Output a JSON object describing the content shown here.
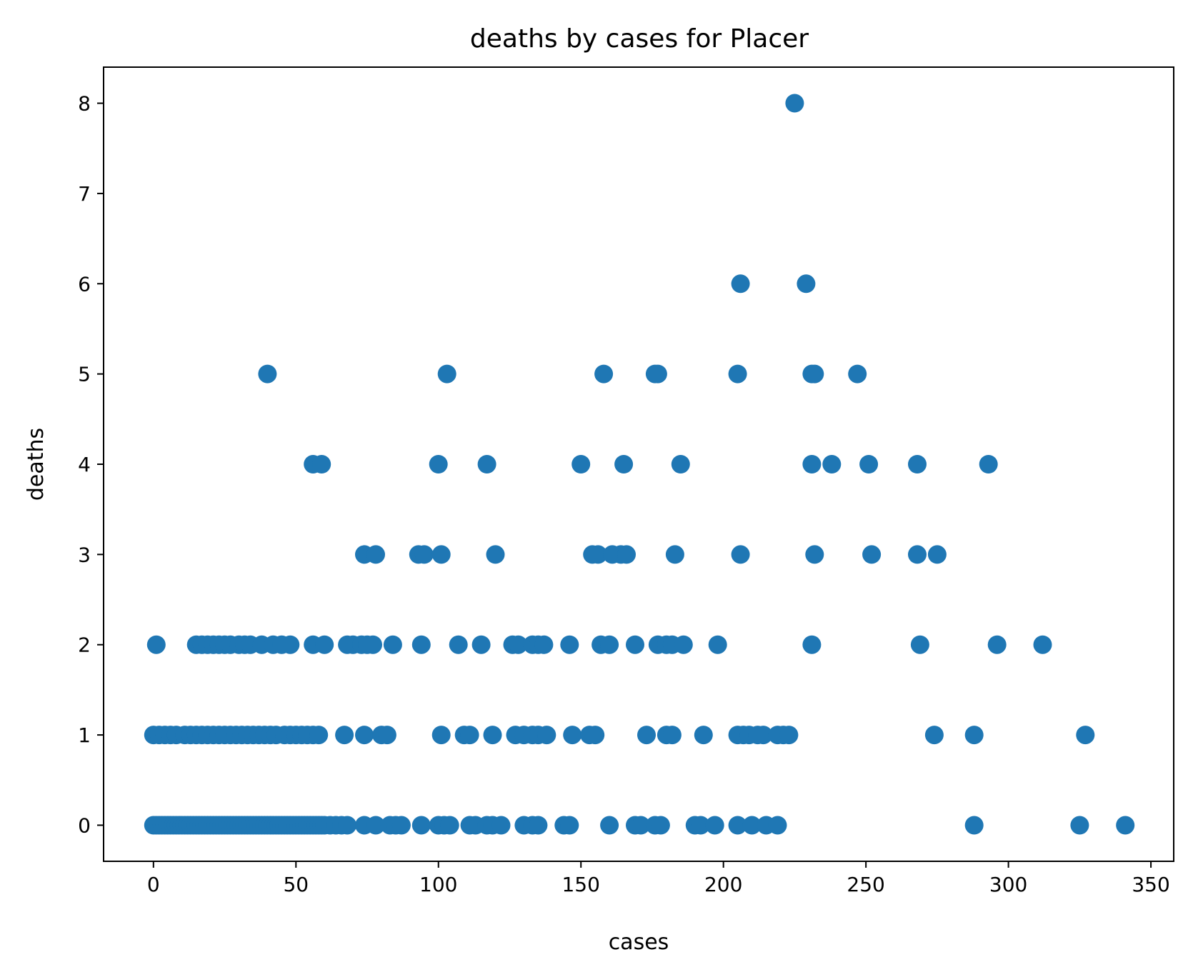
{
  "chart_data": {
    "type": "scatter",
    "title": "deaths by cases for Placer",
    "xlabel": "cases",
    "ylabel": "deaths",
    "xlim": [
      -17.5,
      358
    ],
    "ylim": [
      -0.4,
      8.4
    ],
    "xticks": [
      0,
      50,
      100,
      150,
      200,
      250,
      300,
      350
    ],
    "yticks": [
      0,
      1,
      2,
      3,
      4,
      5,
      6,
      7,
      8
    ],
    "grid": false,
    "legend": "none",
    "marker_color": "#1f77b4",
    "points": [
      [
        225,
        8
      ],
      [
        206,
        6
      ],
      [
        229,
        6
      ],
      [
        40,
        5
      ],
      [
        103,
        5
      ],
      [
        158,
        5
      ],
      [
        176,
        5
      ],
      [
        177,
        5
      ],
      [
        205,
        5
      ],
      [
        231,
        5
      ],
      [
        232,
        5
      ],
      [
        247,
        5
      ],
      [
        56,
        4
      ],
      [
        59,
        4
      ],
      [
        100,
        4
      ],
      [
        117,
        4
      ],
      [
        150,
        4
      ],
      [
        165,
        4
      ],
      [
        185,
        4
      ],
      [
        231,
        4
      ],
      [
        238,
        4
      ],
      [
        251,
        4
      ],
      [
        268,
        4
      ],
      [
        293,
        4
      ],
      [
        74,
        3
      ],
      [
        78,
        3
      ],
      [
        93,
        3
      ],
      [
        95,
        3
      ],
      [
        101,
        3
      ],
      [
        120,
        3
      ],
      [
        154,
        3
      ],
      [
        156,
        3
      ],
      [
        161,
        3
      ],
      [
        164,
        3
      ],
      [
        166,
        3
      ],
      [
        183,
        3
      ],
      [
        206,
        3
      ],
      [
        232,
        3
      ],
      [
        252,
        3
      ],
      [
        268,
        3
      ],
      [
        275,
        3
      ],
      [
        1,
        2
      ],
      [
        15,
        2
      ],
      [
        17,
        2
      ],
      [
        19,
        2
      ],
      [
        21,
        2
      ],
      [
        23,
        2
      ],
      [
        25,
        2
      ],
      [
        27,
        2
      ],
      [
        30,
        2
      ],
      [
        32,
        2
      ],
      [
        34,
        2
      ],
      [
        38,
        2
      ],
      [
        42,
        2
      ],
      [
        45,
        2
      ],
      [
        48,
        2
      ],
      [
        56,
        2
      ],
      [
        60,
        2
      ],
      [
        68,
        2
      ],
      [
        70,
        2
      ],
      [
        73,
        2
      ],
      [
        75,
        2
      ],
      [
        77,
        2
      ],
      [
        84,
        2
      ],
      [
        94,
        2
      ],
      [
        107,
        2
      ],
      [
        115,
        2
      ],
      [
        126,
        2
      ],
      [
        128,
        2
      ],
      [
        133,
        2
      ],
      [
        135,
        2
      ],
      [
        137,
        2
      ],
      [
        146,
        2
      ],
      [
        157,
        2
      ],
      [
        160,
        2
      ],
      [
        169,
        2
      ],
      [
        177,
        2
      ],
      [
        180,
        2
      ],
      [
        182,
        2
      ],
      [
        186,
        2
      ],
      [
        198,
        2
      ],
      [
        231,
        2
      ],
      [
        269,
        2
      ],
      [
        296,
        2
      ],
      [
        312,
        2
      ],
      [
        0,
        1
      ],
      [
        2,
        1
      ],
      [
        4,
        1
      ],
      [
        6,
        1
      ],
      [
        8,
        1
      ],
      [
        11,
        1
      ],
      [
        13,
        1
      ],
      [
        15,
        1
      ],
      [
        17,
        1
      ],
      [
        19,
        1
      ],
      [
        21,
        1
      ],
      [
        23,
        1
      ],
      [
        25,
        1
      ],
      [
        27,
        1
      ],
      [
        29,
        1
      ],
      [
        31,
        1
      ],
      [
        33,
        1
      ],
      [
        35,
        1
      ],
      [
        37,
        1
      ],
      [
        39,
        1
      ],
      [
        41,
        1
      ],
      [
        43,
        1
      ],
      [
        46,
        1
      ],
      [
        48,
        1
      ],
      [
        50,
        1
      ],
      [
        52,
        1
      ],
      [
        54,
        1
      ],
      [
        56,
        1
      ],
      [
        58,
        1
      ],
      [
        67,
        1
      ],
      [
        74,
        1
      ],
      [
        80,
        1
      ],
      [
        82,
        1
      ],
      [
        101,
        1
      ],
      [
        109,
        1
      ],
      [
        111,
        1
      ],
      [
        119,
        1
      ],
      [
        127,
        1
      ],
      [
        130,
        1
      ],
      [
        133,
        1
      ],
      [
        135,
        1
      ],
      [
        138,
        1
      ],
      [
        147,
        1
      ],
      [
        153,
        1
      ],
      [
        155,
        1
      ],
      [
        173,
        1
      ],
      [
        180,
        1
      ],
      [
        182,
        1
      ],
      [
        193,
        1
      ],
      [
        205,
        1
      ],
      [
        207,
        1
      ],
      [
        209,
        1
      ],
      [
        212,
        1
      ],
      [
        214,
        1
      ],
      [
        219,
        1
      ],
      [
        221,
        1
      ],
      [
        223,
        1
      ],
      [
        274,
        1
      ],
      [
        288,
        1
      ],
      [
        327,
        1
      ],
      [
        0,
        0
      ],
      [
        1,
        0
      ],
      [
        2,
        0
      ],
      [
        3,
        0
      ],
      [
        4,
        0
      ],
      [
        5,
        0
      ],
      [
        6,
        0
      ],
      [
        7,
        0
      ],
      [
        8,
        0
      ],
      [
        9,
        0
      ],
      [
        10,
        0
      ],
      [
        11,
        0
      ],
      [
        12,
        0
      ],
      [
        13,
        0
      ],
      [
        14,
        0
      ],
      [
        15,
        0
      ],
      [
        16,
        0
      ],
      [
        17,
        0
      ],
      [
        18,
        0
      ],
      [
        19,
        0
      ],
      [
        20,
        0
      ],
      [
        21,
        0
      ],
      [
        22,
        0
      ],
      [
        23,
        0
      ],
      [
        24,
        0
      ],
      [
        25,
        0
      ],
      [
        26,
        0
      ],
      [
        27,
        0
      ],
      [
        28,
        0
      ],
      [
        29,
        0
      ],
      [
        30,
        0
      ],
      [
        31,
        0
      ],
      [
        32,
        0
      ],
      [
        33,
        0
      ],
      [
        34,
        0
      ],
      [
        35,
        0
      ],
      [
        36,
        0
      ],
      [
        37,
        0
      ],
      [
        38,
        0
      ],
      [
        39,
        0
      ],
      [
        40,
        0
      ],
      [
        41,
        0
      ],
      [
        42,
        0
      ],
      [
        43,
        0
      ],
      [
        44,
        0
      ],
      [
        45,
        0
      ],
      [
        46,
        0
      ],
      [
        47,
        0
      ],
      [
        48,
        0
      ],
      [
        49,
        0
      ],
      [
        50,
        0
      ],
      [
        51,
        0
      ],
      [
        52,
        0
      ],
      [
        53,
        0
      ],
      [
        54,
        0
      ],
      [
        55,
        0
      ],
      [
        56,
        0
      ],
      [
        57,
        0
      ],
      [
        58,
        0
      ],
      [
        59,
        0
      ],
      [
        60,
        0
      ],
      [
        62,
        0
      ],
      [
        64,
        0
      ],
      [
        66,
        0
      ],
      [
        68,
        0
      ],
      [
        74,
        0
      ],
      [
        78,
        0
      ],
      [
        83,
        0
      ],
      [
        85,
        0
      ],
      [
        87,
        0
      ],
      [
        94,
        0
      ],
      [
        100,
        0
      ],
      [
        102,
        0
      ],
      [
        104,
        0
      ],
      [
        111,
        0
      ],
      [
        113,
        0
      ],
      [
        117,
        0
      ],
      [
        119,
        0
      ],
      [
        122,
        0
      ],
      [
        130,
        0
      ],
      [
        133,
        0
      ],
      [
        135,
        0
      ],
      [
        144,
        0
      ],
      [
        146,
        0
      ],
      [
        160,
        0
      ],
      [
        169,
        0
      ],
      [
        171,
        0
      ],
      [
        176,
        0
      ],
      [
        178,
        0
      ],
      [
        190,
        0
      ],
      [
        192,
        0
      ],
      [
        197,
        0
      ],
      [
        205,
        0
      ],
      [
        210,
        0
      ],
      [
        215,
        0
      ],
      [
        219,
        0
      ],
      [
        288,
        0
      ],
      [
        325,
        0
      ],
      [
        341,
        0
      ]
    ]
  }
}
